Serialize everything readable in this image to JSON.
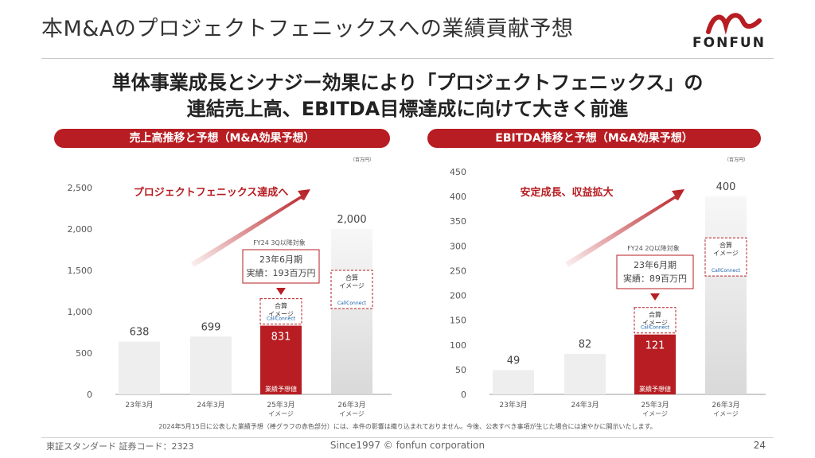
{
  "page": {
    "title": "本M&Aのプロジェクトフェニックスへの業績貢献予想",
    "logo_text": "FONFUN",
    "headline_line1": "単体事業成長とシナジー効果により「プロジェクトフェニックス」の",
    "headline_line2": "連結売上高、EBITDA目標達成に向けて大きく前進",
    "footnote": "2024年5月15日に公表した業績予想（棒グラフの赤色部分）には、本件の影響は織り込まれておりません。今後、公表すべき事項が生じた場合には速やかに開示いたします。",
    "footer_left": "東証スタンダード 証券コード：2323",
    "footer_center": "Since1997 © fonfun corporation",
    "page_number": "24"
  },
  "colors": {
    "accent_red": "#b71d22",
    "bar_gray": "#eeeeee",
    "axis_text": "#555555"
  },
  "chart_data": [
    {
      "type": "bar",
      "title": "売上高推移と予想（M&A効果予想）",
      "unit": "（百万円）",
      "categories": [
        "23年3月",
        "24年3月",
        "25年3月",
        "26年3月"
      ],
      "category_sublabels": [
        "",
        "",
        "イメージ",
        "イメージ"
      ],
      "values": [
        638,
        699,
        831,
        2000
      ],
      "value_labels": [
        "638",
        "699",
        "831",
        "2,000"
      ],
      "bar_colors": [
        "gray",
        "gray",
        "red",
        "gradient"
      ],
      "ylim": [
        0,
        2500
      ],
      "yticks": [
        0,
        500,
        1000,
        1500,
        2000,
        2500
      ],
      "ytick_labels": [
        "0",
        "500",
        "1,000",
        "1,500",
        "2,000",
        "2,500"
      ],
      "grid": false,
      "arrow_label": "プロジェクトフェニックス達成へ",
      "callout_target": "FY24 3Q以降対象",
      "callout_line1": "23年6月期",
      "callout_line2": "実績：193百万円",
      "inbar_label": "業績予想値",
      "merge_label_line1": "合算",
      "merge_label_line2": "イメージ",
      "merge_logo": "CallConnect"
    },
    {
      "type": "bar",
      "title": "EBITDA推移と予想（M&A効果予想）",
      "unit": "（百万円）",
      "categories": [
        "23年3月",
        "24年3月",
        "25年3月",
        "26年3月"
      ],
      "category_sublabels": [
        "",
        "",
        "イメージ",
        "イメージ"
      ],
      "values": [
        49,
        82,
        121,
        400
      ],
      "value_labels": [
        "49",
        "82",
        "121",
        "400"
      ],
      "bar_colors": [
        "gray",
        "gray",
        "red",
        "gradient"
      ],
      "ylim": [
        0,
        450
      ],
      "yticks": [
        0,
        50,
        100,
        150,
        200,
        250,
        300,
        350,
        400,
        450
      ],
      "ytick_labels": [
        "0",
        "50",
        "100",
        "150",
        "200",
        "250",
        "300",
        "350",
        "400",
        "450"
      ],
      "grid": false,
      "arrow_label": "安定成長、収益拡大",
      "callout_target": "FY24 2Q以降対象",
      "callout_line1": "23年6月期",
      "callout_line2": "実績：89百万円",
      "inbar_label": "業績予想値",
      "merge_label_line1": "合算",
      "merge_label_line2": "イメージ",
      "merge_logo": "CallConnect"
    }
  ]
}
